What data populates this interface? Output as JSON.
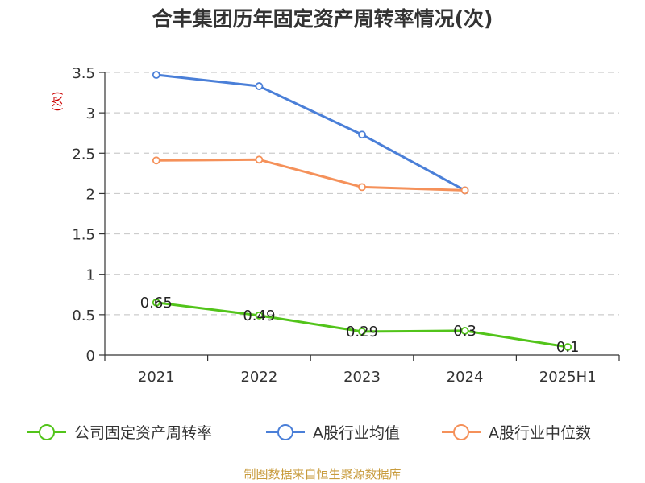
{
  "chart_data": {
    "type": "line",
    "title": "合丰集团历年固定资产周转率情况(次)",
    "ylabel": "(次)",
    "xlabel": "",
    "categories": [
      "2021",
      "2022",
      "2023",
      "2024",
      "2025H1"
    ],
    "ylim": [
      0,
      3.5
    ],
    "yticks": [
      "0",
      "0.5",
      "1",
      "1.5",
      "2",
      "2.5",
      "3",
      "3.5"
    ],
    "grid": true,
    "legend_position": "bottom",
    "series": [
      {
        "name": "公司固定资产周转率",
        "color": "#52c41a",
        "values": [
          0.65,
          0.49,
          0.29,
          0.3,
          0.1
        ],
        "labels": [
          "0.65",
          "0.49",
          "0.29",
          "0.3",
          "0.1"
        ]
      },
      {
        "name": "A股行业均值",
        "color": "#4a7fd8",
        "values": [
          3.47,
          3.33,
          2.73,
          2.04,
          null
        ]
      },
      {
        "name": "A股行业中位数",
        "color": "#f5915a",
        "values": [
          2.41,
          2.42,
          2.08,
          2.04,
          null
        ]
      }
    ],
    "source": "制图数据来自恒生聚源数据库"
  }
}
